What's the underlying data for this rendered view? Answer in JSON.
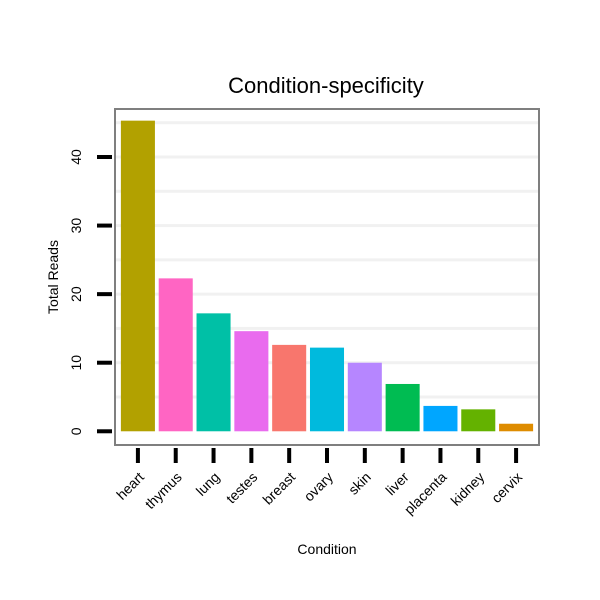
{
  "chart_data": {
    "type": "bar",
    "title": "Condition-specificity",
    "xlabel": "Condition",
    "ylabel": "Total Reads",
    "ylim": [
      -2,
      47
    ],
    "yticks": [
      0,
      10,
      20,
      30,
      40
    ],
    "grid": true,
    "categories": [
      "heart",
      "thymus",
      "lung",
      "testes",
      "breast",
      "ovary",
      "skin",
      "liver",
      "placenta",
      "kidney",
      "cervix"
    ],
    "values": [
      45.3,
      22.3,
      17.2,
      14.6,
      12.6,
      12.2,
      10.0,
      6.9,
      3.7,
      3.2,
      1.1
    ],
    "colors": [
      "#B2A100",
      "#FF65C3",
      "#00C0A6",
      "#E96BEE",
      "#F8766D",
      "#00BADD",
      "#B686FF",
      "#00BC52",
      "#00A6FF",
      "#64B200",
      "#DE8C00"
    ]
  }
}
